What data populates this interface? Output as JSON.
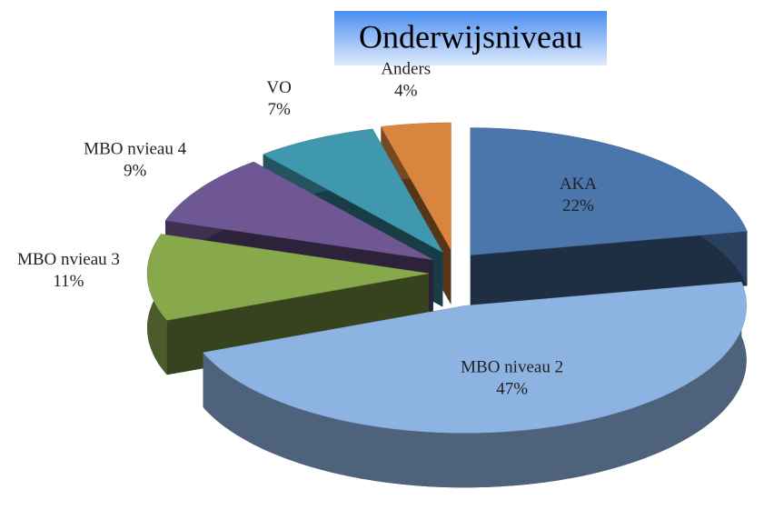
{
  "chart_data": {
    "type": "pie3d",
    "title": "Onderwijsniveau",
    "categories": [
      "AKA",
      "MBO niveau 2",
      "MBO nvieau 3",
      "MBO nvieau 4",
      "VO",
      "Anders"
    ],
    "values": [
      22,
      47,
      11,
      9,
      7,
      4
    ],
    "value_labels": [
      "22%",
      "47%",
      "11%",
      "9%",
      "7%",
      "4%"
    ],
    "colors": [
      "#4a76ab",
      "#8db3e2",
      "#88a84c",
      "#6f5794",
      "#3f98ae",
      "#d9843f"
    ]
  }
}
